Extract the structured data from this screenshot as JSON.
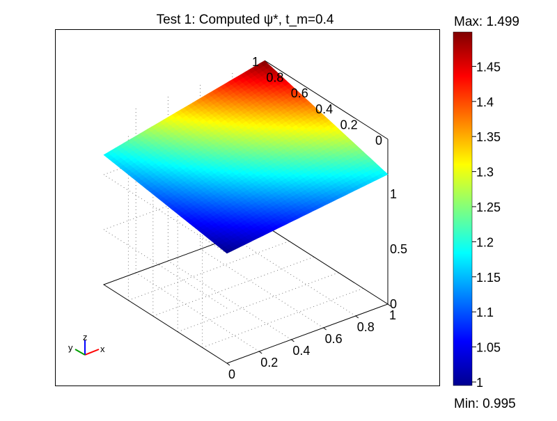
{
  "chart_data": {
    "type": "surface",
    "title": "Test 1:  Computed ψ*, t_m=0.4",
    "x_ticks": [
      "0",
      "0.2",
      "0.4",
      "0.6",
      "0.8",
      "1"
    ],
    "y_ticks": [
      "0",
      "0.2",
      "0.4",
      "0.6",
      "0.8",
      "1"
    ],
    "z_ticks": [
      "0",
      "0.5",
      "1"
    ],
    "colorbar": {
      "max_label": "Max: 1.499",
      "min_label": "Min: 0.995",
      "ticks": [
        "1",
        "1.05",
        "1.1",
        "1.15",
        "1.2",
        "1.25",
        "1.3",
        "1.35",
        "1.4",
        "1.45"
      ],
      "colormap": "jet",
      "range": [
        0.995,
        1.499
      ]
    },
    "surface_values": {
      "corner_x0_y0": 1.0,
      "corner_x1_y0": 1.18,
      "corner_x0_y1": 1.18,
      "corner_x1_y1": 1.499
    },
    "axes_triad": {
      "x": "x",
      "y": "y",
      "z": "z"
    },
    "grid": true
  }
}
